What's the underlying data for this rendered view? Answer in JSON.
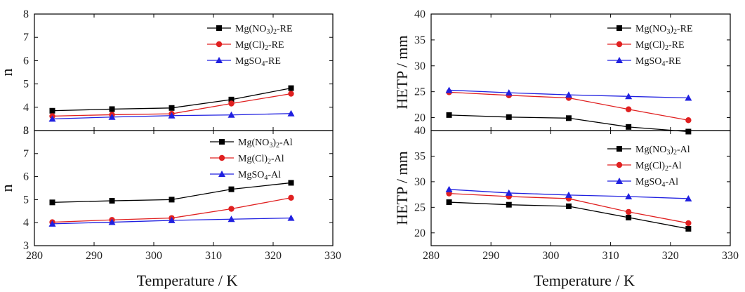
{
  "chart_data": [
    {
      "type": "line",
      "x": [
        283,
        293,
        303,
        313,
        323
      ],
      "xlim": [
        280,
        330
      ],
      "ylim": [
        3,
        8
      ],
      "ylabel": "n",
      "xticks": [
        "280",
        "290",
        "300",
        "310",
        "320",
        "330"
      ],
      "yticks": [
        "3",
        "4",
        "5",
        "6",
        "7",
        "8"
      ],
      "legend_position": "top-right",
      "series": [
        {
          "name": "Mg(NO3)2-RE",
          "name_parts": [
            "Mg(NO",
            "3",
            ")",
            "2",
            "-RE"
          ],
          "color": "#000000",
          "marker": "square",
          "values": [
            3.85,
            3.92,
            3.97,
            4.33,
            4.82
          ]
        },
        {
          "name": "Mg(Cl)2-RE",
          "name_parts": [
            "Mg(Cl)",
            "2",
            "-RE"
          ],
          "color": "#e02020",
          "marker": "circle",
          "values": [
            3.62,
            3.68,
            3.72,
            4.16,
            4.58
          ]
        },
        {
          "name": "MgSO4-RE",
          "name_parts": [
            "MgSO",
            "4",
            "-RE"
          ],
          "color": "#2020e0",
          "marker": "triangle",
          "values": [
            3.5,
            3.58,
            3.64,
            3.67,
            3.73
          ]
        }
      ]
    },
    {
      "type": "line",
      "x": [
        283,
        293,
        303,
        313,
        323
      ],
      "xlim": [
        280,
        330
      ],
      "ylim": [
        3,
        8
      ],
      "ylabel": "n",
      "xlabel": "Temperature / K",
      "xticks": [
        "280",
        "290",
        "300",
        "310",
        "320",
        "330"
      ],
      "yticks": [
        "3",
        "4",
        "5",
        "6",
        "7",
        "8"
      ],
      "legend_position": "top-right",
      "series": [
        {
          "name": "Mg(NO3)2-Al",
          "name_parts": [
            "Mg(NO",
            "3",
            ")",
            "2",
            "-Al"
          ],
          "color": "#000000",
          "marker": "square",
          "values": [
            4.88,
            4.95,
            5.0,
            5.45,
            5.73
          ]
        },
        {
          "name": "Mg(Cl)2-Al",
          "name_parts": [
            "Mg(Cl)",
            "2",
            "-Al"
          ],
          "color": "#e02020",
          "marker": "circle",
          "values": [
            4.02,
            4.12,
            4.2,
            4.6,
            5.08
          ]
        },
        {
          "name": "MgSO4-Al",
          "name_parts": [
            "MgSO",
            "4",
            "-Al"
          ],
          "color": "#2020e0",
          "marker": "triangle",
          "values": [
            3.95,
            4.02,
            4.1,
            4.15,
            4.2
          ]
        }
      ]
    },
    {
      "type": "line",
      "x": [
        283,
        293,
        303,
        313,
        323
      ],
      "xlim": [
        280,
        330
      ],
      "ylim": [
        17.5,
        40
      ],
      "ylabel": "HETP / mm",
      "xticks": [
        "280",
        "290",
        "300",
        "310",
        "320",
        "330"
      ],
      "yticks": [
        "20",
        "25",
        "30",
        "35",
        "40"
      ],
      "legend_position": "top-right",
      "series": [
        {
          "name": "Mg(NO3)2-RE",
          "name_parts": [
            "Mg(NO",
            "3",
            ")",
            "2",
            "-RE"
          ],
          "color": "#000000",
          "marker": "square",
          "values": [
            20.5,
            20.1,
            19.9,
            18.2,
            17.3
          ]
        },
        {
          "name": "Mg(Cl)2-RE",
          "name_parts": [
            "Mg(Cl)",
            "2",
            "-RE"
          ],
          "color": "#e02020",
          "marker": "circle",
          "values": [
            24.9,
            24.3,
            23.8,
            21.6,
            19.5
          ]
        },
        {
          "name": "MgSO4-RE",
          "name_parts": [
            "MgSO",
            "4",
            "-RE"
          ],
          "color": "#2020e0",
          "marker": "triangle",
          "values": [
            25.3,
            24.8,
            24.4,
            24.1,
            23.8
          ]
        }
      ]
    },
    {
      "type": "line",
      "x": [
        283,
        293,
        303,
        313,
        323
      ],
      "xlim": [
        280,
        330
      ],
      "ylim": [
        17.5,
        40
      ],
      "ylabel": "HETP / mm",
      "xlabel": "Temperature /  K",
      "xticks": [
        "280",
        "290",
        "300",
        "310",
        "320",
        "330"
      ],
      "yticks": [
        "20",
        "25",
        "30",
        "35",
        "40"
      ],
      "legend_position": "top-right",
      "series": [
        {
          "name": "Mg(NO3)2-Al",
          "name_parts": [
            "Mg(NO",
            "3",
            ")",
            "2",
            "-Al"
          ],
          "color": "#000000",
          "marker": "square",
          "values": [
            26.0,
            25.5,
            25.2,
            23.0,
            20.8
          ]
        },
        {
          "name": "Mg(Cl)2-Al",
          "name_parts": [
            "Mg(Cl)",
            "2",
            "-Al"
          ],
          "color": "#e02020",
          "marker": "circle",
          "values": [
            27.7,
            27.1,
            26.7,
            24.1,
            21.9
          ]
        },
        {
          "name": "MgSO4-Al",
          "name_parts": [
            "MgSO",
            "4",
            "-Al"
          ],
          "color": "#2020e0",
          "marker": "triangle",
          "values": [
            28.5,
            27.8,
            27.4,
            27.1,
            26.7
          ]
        }
      ]
    }
  ]
}
